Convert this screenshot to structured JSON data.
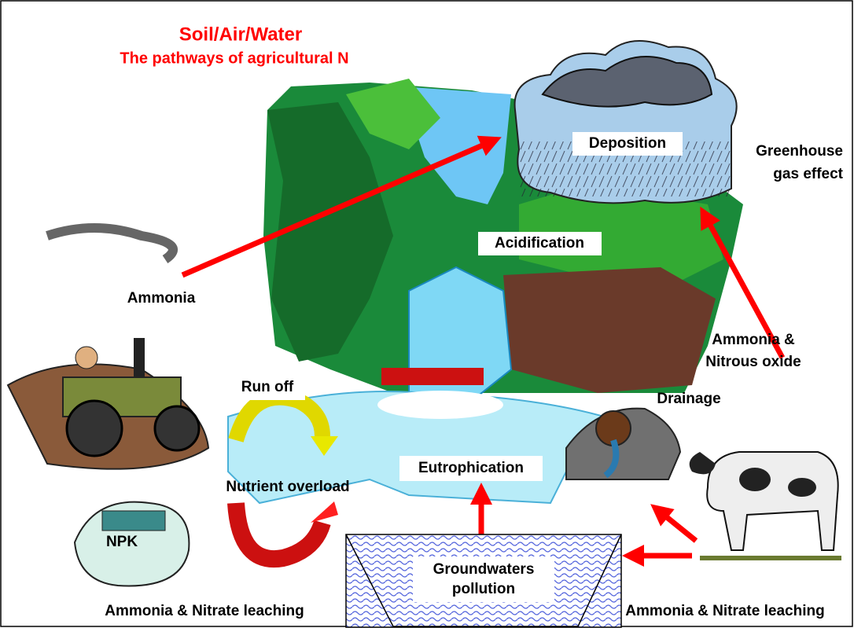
{
  "title": "Soil/Air/Water",
  "subtitle": "The pathways of agricultural N",
  "labels": {
    "deposition": "Deposition",
    "greenhouse": {
      "lines": [
        "Greenhouse",
        "gas effect"
      ]
    },
    "acidification": "Acidification",
    "ammonia": "Ammonia",
    "ammonia_nitrous": {
      "lines": [
        "Ammonia &",
        "Nitrous oxide"
      ]
    },
    "run_off": "Run off",
    "drainage": "Drainage",
    "eutrophication": "Eutrophication",
    "nutrient_overload": "Nutrient overload",
    "npk": "NPK",
    "groundwaters": {
      "lines": [
        "Groundwaters",
        "pollution"
      ]
    },
    "leaching_left": "Ammonia & Nitrate leaching",
    "leaching_right": "Ammonia & Nitrate leaching"
  }
}
